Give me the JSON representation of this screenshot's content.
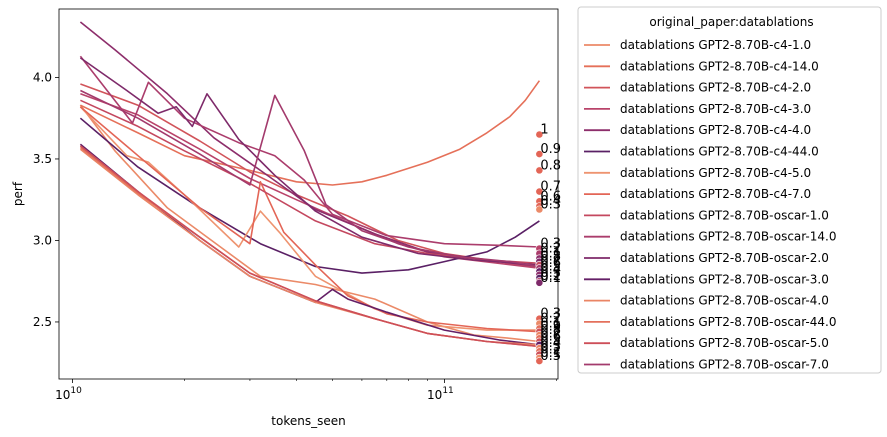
{
  "chart_data": {
    "type": "line",
    "xlabel": "tokens_seen",
    "ylabel": "perf",
    "xscale": "log",
    "xlim": [
      9200000000.0,
      202000000000.0
    ],
    "ylim": [
      2.15,
      4.42
    ],
    "x_ticks": [
      {
        "value": 10000000000.0,
        "base": "10",
        "exp": "10"
      },
      {
        "value": 100000000000.0,
        "base": "10",
        "exp": "11"
      }
    ],
    "y_ticks": [
      {
        "value": 2.5,
        "label": "2.5"
      },
      {
        "value": 3.0,
        "label": "3.0"
      },
      {
        "value": 3.5,
        "label": "3.5"
      },
      {
        "value": 4.0,
        "label": "4.0"
      }
    ],
    "grid": false,
    "legend": {
      "title": "original_paper:datablations",
      "placement": "outside-right"
    },
    "series": [
      {
        "name": "datablations GPT2-8.70B-c4-1.0",
        "color": "#eb8a68",
        "x": [
          10500000000.0,
          13000000000.0,
          18000000000.0,
          25000000000.0,
          32000000000.0,
          45000000000.0,
          65000000000.0,
          90000000000.0,
          120000000000.0,
          150000000000.0,
          180000000000.0
        ],
        "y": [
          3.83,
          3.55,
          3.2,
          2.96,
          2.78,
          2.73,
          2.64,
          2.5,
          2.42,
          2.4,
          2.38
        ]
      },
      {
        "name": "datablations GPT2-8.70B-c4-14.0",
        "color": "#e57059",
        "x": [
          10500000000.0,
          15000000000.0,
          20000000000.0,
          30000000000.0,
          40000000000.0,
          50000000000.0,
          60000000000.0,
          70000000000.0,
          90000000000.0,
          110000000000.0,
          130000000000.0,
          150000000000.0,
          165000000000.0,
          180000000000.0
        ],
        "y": [
          3.83,
          3.66,
          3.52,
          3.43,
          3.36,
          3.34,
          3.36,
          3.4,
          3.48,
          3.56,
          3.66,
          3.76,
          3.86,
          3.98
        ]
      },
      {
        "name": "datablations GPT2-8.70B-c4-2.0",
        "color": "#d1545a",
        "x": [
          10500000000.0,
          15000000000.0,
          22000000000.0,
          30000000000.0,
          40000000000.0,
          55000000000.0,
          75000000000.0,
          100000000000.0,
          140000000000.0,
          180000000000.0
        ],
        "y": [
          3.96,
          3.83,
          3.61,
          3.42,
          3.28,
          3.15,
          3.0,
          2.92,
          2.87,
          2.83
        ]
      },
      {
        "name": "datablations GPT2-8.70B-c4-3.0",
        "color": "#b9436a",
        "x": [
          10500000000.0,
          15000000000.0,
          22000000000.0,
          30000000000.0,
          40000000000.0,
          55000000000.0,
          75000000000.0,
          100000000000.0,
          140000000000.0,
          180000000000.0
        ],
        "y": [
          3.9,
          3.77,
          3.56,
          3.38,
          3.25,
          3.11,
          2.98,
          2.9,
          2.86,
          2.83
        ]
      },
      {
        "name": "datablations GPT2-8.70B-c4-4.0",
        "color": "#8d2e6b",
        "x": [
          10500000000.0,
          13000000000.0,
          18000000000.0,
          24000000000.0,
          32000000000.0,
          45000000000.0,
          65000000000.0,
          90000000000.0,
          130000000000.0,
          180000000000.0
        ],
        "y": [
          4.34,
          4.17,
          3.9,
          3.63,
          3.43,
          3.19,
          3.04,
          2.93,
          2.88,
          2.84
        ]
      },
      {
        "name": "datablations GPT2-8.70B-c4-44.0",
        "color": "#5a2065",
        "x": [
          10500000000.0,
          15000000000.0,
          22000000000.0,
          32000000000.0,
          45000000000.0,
          60000000000.0,
          80000000000.0,
          100000000000.0,
          130000000000.0,
          155000000000.0,
          180000000000.0
        ],
        "y": [
          3.75,
          3.45,
          3.2,
          2.98,
          2.84,
          2.8,
          2.82,
          2.87,
          2.93,
          3.02,
          3.12
        ]
      },
      {
        "name": "datablations GPT2-8.70B-c4-5.0",
        "color": "#ee9470",
        "x": [
          10500000000.0,
          14000000000.0,
          16000000000.0,
          20000000000.0,
          28000000000.0,
          32000000000.0,
          36000000000.0,
          45000000000.0,
          65000000000.0,
          90000000000.0,
          130000000000.0,
          180000000000.0
        ],
        "y": [
          3.82,
          3.52,
          3.48,
          3.28,
          2.96,
          3.18,
          3.05,
          2.78,
          2.58,
          2.48,
          2.45,
          2.45
        ]
      },
      {
        "name": "datablations GPT2-8.70B-c4-7.0",
        "color": "#e36556",
        "x": [
          10500000000.0,
          15000000000.0,
          22000000000.0,
          30000000000.0,
          32000000000.0,
          37000000000.0,
          45000000000.0,
          55000000000.0,
          70000000000.0,
          90000000000.0,
          130000000000.0,
          180000000000.0
        ],
        "y": [
          3.82,
          3.52,
          3.2,
          2.98,
          3.36,
          3.05,
          2.85,
          2.66,
          2.55,
          2.5,
          2.46,
          2.44
        ]
      },
      {
        "name": "datablations GPT2-8.70B-oscar-1.0",
        "color": "#c4485f",
        "x": [
          10500000000.0,
          15000000000.0,
          20000000000.0,
          30000000000.0,
          45000000000.0,
          65000000000.0,
          90000000000.0,
          130000000000.0,
          180000000000.0
        ],
        "y": [
          3.86,
          3.7,
          3.55,
          3.35,
          3.12,
          2.98,
          2.92,
          2.88,
          2.86
        ]
      },
      {
        "name": "datablations GPT2-8.70B-oscar-14.0",
        "color": "#ab3d6c",
        "x": [
          10500000000.0,
          14500000000.0,
          16000000000.0,
          20000000000.0,
          28000000000.0,
          35000000000.0,
          42000000000.0,
          50000000000.0,
          70000000000.0,
          100000000000.0,
          140000000000.0,
          180000000000.0
        ],
        "y": [
          4.13,
          3.72,
          3.97,
          3.75,
          3.6,
          3.52,
          3.37,
          3.16,
          3.03,
          2.98,
          2.97,
          2.96
        ]
      },
      {
        "name": "datablations GPT2-8.70B-oscar-2.0",
        "color": "#7e2a6a",
        "x": [
          10500000000.0,
          14000000000.0,
          17000000000.0,
          19000000000.0,
          21000000000.0,
          23000000000.0,
          28000000000.0,
          35000000000.0,
          45000000000.0,
          60000000000.0,
          85000000000.0,
          120000000000.0,
          180000000000.0
        ],
        "y": [
          4.12,
          3.92,
          3.78,
          3.82,
          3.7,
          3.9,
          3.62,
          3.4,
          3.18,
          3.02,
          2.92,
          2.88,
          2.85
        ]
      },
      {
        "name": "datablations GPT2-8.70B-oscar-3.0",
        "color": "#641f66",
        "x": [
          10500000000.0,
          15000000000.0,
          22000000000.0,
          30000000000.0,
          45000000000.0,
          50000000000.0,
          55000000000.0,
          70000000000.0,
          100000000000.0,
          140000000000.0,
          180000000000.0
        ],
        "y": [
          3.59,
          3.3,
          3.0,
          2.78,
          2.62,
          2.7,
          2.64,
          2.56,
          2.45,
          2.39,
          2.36
        ]
      },
      {
        "name": "datablations GPT2-8.70B-oscar-4.0",
        "color": "#ea8565",
        "x": [
          10500000000.0,
          15000000000.0,
          22000000000.0,
          30000000000.0,
          45000000000.0,
          65000000000.0,
          90000000000.0,
          130000000000.0,
          180000000000.0
        ],
        "y": [
          3.56,
          3.28,
          3.0,
          2.78,
          2.62,
          2.52,
          2.43,
          2.38,
          2.36
        ]
      },
      {
        "name": "datablations GPT2-8.70B-oscar-44.0",
        "color": "#e4705c",
        "x": [
          10500000000.0,
          15000000000.0,
          22000000000.0,
          30000000000.0,
          45000000000.0,
          65000000000.0,
          90000000000.0,
          130000000000.0,
          180000000000.0
        ],
        "y": [
          3.57,
          3.29,
          3.02,
          2.8,
          2.63,
          2.52,
          2.43,
          2.38,
          2.35
        ]
      },
      {
        "name": "datablations GPT2-8.70B-oscar-5.0",
        "color": "#cd4f58",
        "x": [
          10500000000.0,
          15000000000.0,
          22000000000.0,
          30000000000.0,
          45000000000.0,
          65000000000.0,
          90000000000.0,
          130000000000.0,
          180000000000.0
        ],
        "y": [
          3.58,
          3.3,
          3.02,
          2.8,
          2.63,
          2.52,
          2.43,
          2.38,
          2.35
        ]
      },
      {
        "name": "datablations GPT2-8.70B-oscar-7.0",
        "color": "#a33a6c",
        "x": [
          10500000000.0,
          15000000000.0,
          22000000000.0,
          30000000000.0,
          35000000000.0,
          42000000000.0,
          48000000000.0,
          60000000000.0,
          80000000000.0,
          110000000000.0,
          150000000000.0,
          180000000000.0
        ],
        "y": [
          3.92,
          3.75,
          3.53,
          3.34,
          3.89,
          3.55,
          3.22,
          3.06,
          2.96,
          2.9,
          2.87,
          2.84
        ]
      }
    ],
    "points": [
      {
        "x": 180000000000.0,
        "y": 3.65,
        "label": "1",
        "color": "#e36556"
      },
      {
        "x": 180000000000.0,
        "y": 3.53,
        "label": "0.9",
        "color": "#e36556"
      },
      {
        "x": 180000000000.0,
        "y": 3.43,
        "label": "0.8",
        "color": "#e36556"
      },
      {
        "x": 180000000000.0,
        "y": 3.3,
        "label": "0.7",
        "color": "#e36556"
      },
      {
        "x": 180000000000.0,
        "y": 3.24,
        "label": "0.6",
        "color": "#e36556"
      },
      {
        "x": 180000000000.0,
        "y": 3.21,
        "label": "0.4",
        "color": "#e36556"
      },
      {
        "x": 180000000000.0,
        "y": 3.19,
        "label": "0.3",
        "color": "#eb8a68"
      },
      {
        "x": 180000000000.0,
        "y": 2.95,
        "label": "0.3",
        "color": "#b9436a"
      },
      {
        "x": 180000000000.0,
        "y": 2.92,
        "label": "0.2",
        "color": "#ab3d6c"
      },
      {
        "x": 180000000000.0,
        "y": 2.89,
        "label": "0.1",
        "color": "#8d2e6b"
      },
      {
        "x": 180000000000.0,
        "y": 2.87,
        "label": "0.8",
        "color": "#7e2a6a"
      },
      {
        "x": 180000000000.0,
        "y": 2.85,
        "label": "0.7",
        "color": "#c4485f"
      },
      {
        "x": 180000000000.0,
        "y": 2.83,
        "label": "0.6",
        "color": "#a33a6c"
      },
      {
        "x": 180000000000.0,
        "y": 2.81,
        "label": "0.5",
        "color": "#641f66"
      },
      {
        "x": 180000000000.0,
        "y": 2.79,
        "label": "0.4",
        "color": "#8d2e6b"
      },
      {
        "x": 180000000000.0,
        "y": 2.77,
        "label": "0.3",
        "color": "#5a2065"
      },
      {
        "x": 180000000000.0,
        "y": 2.75,
        "label": "0.2",
        "color": "#b9436a"
      },
      {
        "x": 180000000000.0,
        "y": 2.74,
        "label": "0.1",
        "color": "#7e2a6a"
      },
      {
        "x": 180000000000.0,
        "y": 2.52,
        "label": "0.3",
        "color": "#e36556"
      },
      {
        "x": 180000000000.0,
        "y": 2.49,
        "label": "0.2",
        "color": "#eb8a68"
      },
      {
        "x": 180000000000.0,
        "y": 2.46,
        "label": "0.1",
        "color": "#e4705c"
      },
      {
        "x": 180000000000.0,
        "y": 2.44,
        "label": "0.9",
        "color": "#cd4f58"
      },
      {
        "x": 180000000000.0,
        "y": 2.42,
        "label": "0.8",
        "color": "#ea8565"
      },
      {
        "x": 180000000000.0,
        "y": 2.4,
        "label": "0.7",
        "color": "#e4705c"
      },
      {
        "x": 180000000000.0,
        "y": 2.38,
        "label": "0.6",
        "color": "#cd4f58"
      },
      {
        "x": 180000000000.0,
        "y": 2.36,
        "label": "0.5",
        "color": "#641f66"
      },
      {
        "x": 180000000000.0,
        "y": 2.34,
        "label": "0.4",
        "color": "#ea8565"
      },
      {
        "x": 180000000000.0,
        "y": 2.32,
        "label": "0.3",
        "color": "#e4705c"
      },
      {
        "x": 180000000000.0,
        "y": 2.3,
        "label": "0.2",
        "color": "#cd4f58"
      },
      {
        "x": 180000000000.0,
        "y": 2.28,
        "label": "0.1",
        "color": "#eb8a68"
      },
      {
        "x": 180000000000.0,
        "y": 2.26,
        "label": "0.5",
        "color": "#e36556"
      }
    ]
  }
}
